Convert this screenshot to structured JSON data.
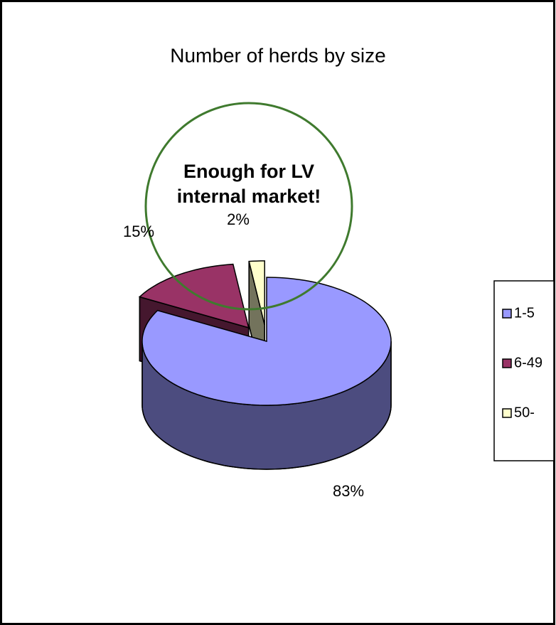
{
  "chart_data": {
    "type": "pie3d",
    "title": "Number of herds by size",
    "categories": [
      "1-5",
      "6-49",
      "50-"
    ],
    "values": [
      83,
      15,
      2
    ],
    "value_labels": [
      "83%",
      "15%",
      "2%"
    ],
    "colors": [
      "#9999ff",
      "#993366",
      "#ffffcc"
    ],
    "exploded": [
      false,
      true,
      true
    ],
    "annotation": [
      "Enough for LV",
      "internal market!"
    ],
    "legend": "right"
  }
}
